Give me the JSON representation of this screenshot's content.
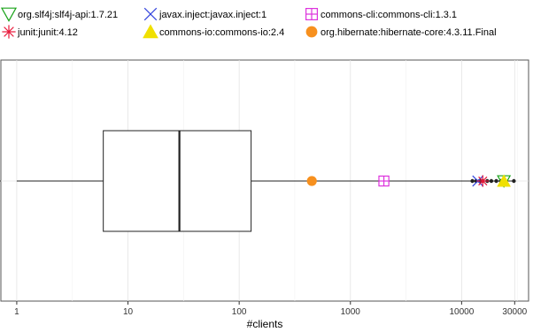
{
  "chart_data": {
    "type": "box",
    "xlabel": "#clients",
    "xscale": "log10",
    "xlim": [
      0.72,
      40000
    ],
    "x_ticks": [
      1,
      10,
      100,
      1000,
      10000,
      30000
    ],
    "x_tick_labels": [
      "1",
      "10",
      "100",
      "1000",
      "10000",
      "30000"
    ],
    "grid": true,
    "legend_position": "top",
    "box": {
      "whisker_low": 1,
      "q1": 6,
      "median": 29,
      "q3": 128,
      "whisker_high": 29500,
      "outliers": [
        12500,
        13500,
        14500,
        15500,
        17000,
        18500,
        20500,
        22500,
        24500,
        29500
      ]
    },
    "series": [
      {
        "name": "org.slf4j:slf4j-api:1.7.21",
        "x": 24000,
        "marker": "triangle-down-open",
        "color": "#1aa31a"
      },
      {
        "name": "javax.inject:javax.inject:1",
        "x": 14000,
        "marker": "cross",
        "color": "#3344dd"
      },
      {
        "name": "commons-cli:commons-cli:1.3.1",
        "x": 2000,
        "marker": "square-plus-open",
        "color": "#dd33dd"
      },
      {
        "name": "junit:junit:4.12",
        "x": 15500,
        "marker": "asterisk",
        "color": "#e8183a"
      },
      {
        "name": "commons-io:commons-io:2.4",
        "x": 24000,
        "marker": "triangle-up-filled",
        "color": "#f0e000"
      },
      {
        "name": "org.hibernate:hibernate-core:4.3.11.Final",
        "x": 450,
        "marker": "circle-filled",
        "color": "#f7901e"
      }
    ]
  }
}
